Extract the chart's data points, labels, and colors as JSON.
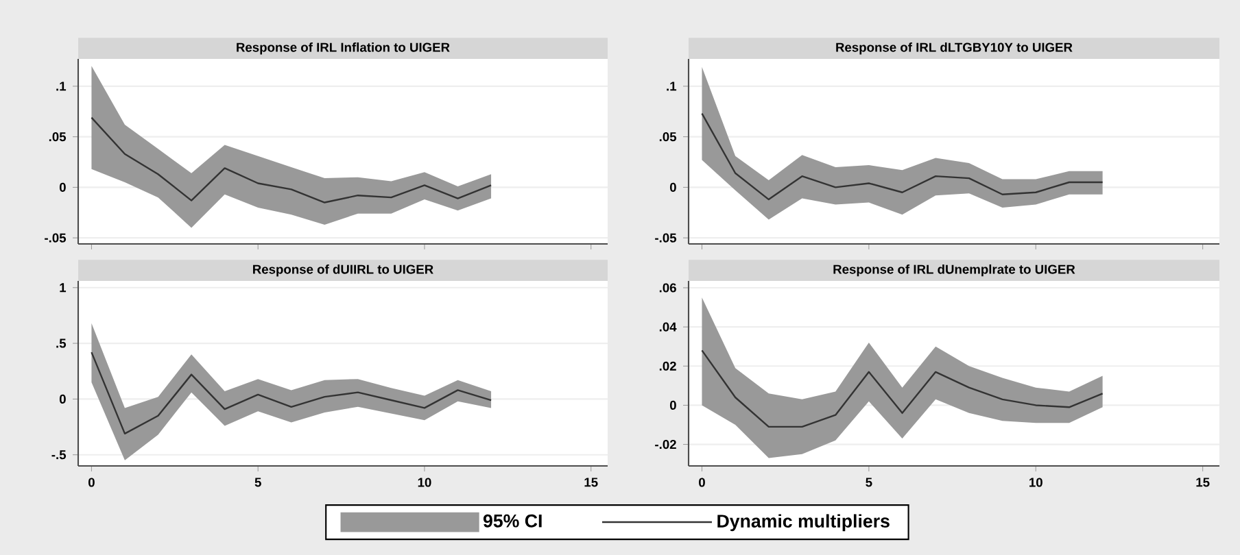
{
  "chart_data": [
    {
      "type": "line",
      "title": "Response of IRL Inflation to UIGER",
      "x": [
        0,
        1,
        2,
        3,
        4,
        5,
        6,
        7,
        8,
        9,
        10,
        11,
        12
      ],
      "xlim": [
        -0.4,
        15.5
      ],
      "xticks": [
        0,
        5,
        10,
        15
      ],
      "ylim": [
        -0.056,
        0.127
      ],
      "yticks": [
        {
          "value": -0.05,
          "label": "-.05"
        },
        0,
        {
          "value": 0.05,
          "label": ".05"
        },
        {
          "value": 0.1,
          "label": ".1"
        }
      ],
      "grid": "y",
      "tick_labels": "y",
      "legend": "bottom",
      "annotations": [
        "95% CI"
      ],
      "series": [
        {
          "name": "Dynamic multipliers",
          "color": "#333333",
          "values": [
            0.069,
            0.033,
            0.013,
            -0.013,
            0.019,
            0.004,
            -0.002,
            -0.015,
            -0.008,
            -0.01,
            0.002,
            -0.011,
            0.002
          ],
          "lower": [
            0.018,
            0.005,
            -0.01,
            -0.04,
            -0.007,
            -0.02,
            -0.027,
            -0.037,
            -0.026,
            -0.026,
            -0.012,
            -0.023,
            -0.011
          ],
          "upper": [
            0.12,
            0.062,
            0.038,
            0.014,
            0.042,
            0.031,
            0.02,
            0.009,
            0.01,
            0.006,
            0.015,
            0.001,
            0.013
          ]
        }
      ]
    },
    {
      "type": "line",
      "title": "Response of IRL dLTGBY10Y to UIGER",
      "x": [
        0,
        1,
        2,
        3,
        4,
        5,
        6,
        7,
        8,
        9,
        10,
        11,
        12
      ],
      "xlim": [
        -0.4,
        15.5
      ],
      "xticks": [
        0,
        5,
        10,
        15
      ],
      "ylim": [
        -0.056,
        0.127
      ],
      "yticks": [
        {
          "value": -0.05,
          "label": "-.05"
        },
        0,
        {
          "value": 0.05,
          "label": ".05"
        },
        {
          "value": 0.1,
          "label": ".1"
        }
      ],
      "grid": "y",
      "tick_labels": "y",
      "series": [
        {
          "color": "#333333",
          "values": [
            0.073,
            0.014,
            -0.012,
            0.011,
            0,
            0.004,
            -0.005,
            0.011,
            0.009,
            -0.007,
            -0.005,
            0.005,
            0.005
          ],
          "lower": [
            0.027,
            -0.003,
            -0.032,
            -0.011,
            -0.017,
            -0.015,
            -0.027,
            -0.008,
            -0.006,
            -0.02,
            -0.017,
            -0.007,
            -0.007
          ],
          "upper": [
            0.119,
            0.031,
            0.007,
            0.032,
            0.02,
            0.022,
            0.017,
            0.029,
            0.024,
            0.008,
            0.008,
            0.016,
            0.016
          ]
        }
      ]
    },
    {
      "type": "line",
      "title": "Response of dUIIRL to UIGER",
      "x": [
        0,
        1,
        2,
        3,
        4,
        5,
        6,
        7,
        8,
        9,
        10,
        11,
        12
      ],
      "xlim": [
        -0.4,
        15.5
      ],
      "xticks": [
        0,
        5,
        10,
        15
      ],
      "ylim": [
        -0.6,
        1.06
      ],
      "yticks": [
        {
          "value": -0.5,
          "label": "-.5"
        },
        0,
        {
          "value": 0.5,
          "label": ".5"
        },
        1
      ],
      "grid": "y",
      "series": [
        {
          "color": "#333333",
          "values": [
            0.42,
            -0.31,
            -0.15,
            0.22,
            -0.09,
            0.04,
            -0.07,
            0.02,
            0.06,
            -0.01,
            -0.08,
            0.08,
            -0.01
          ],
          "lower": [
            0.15,
            -0.55,
            -0.32,
            0.06,
            -0.24,
            -0.11,
            -0.21,
            -0.12,
            -0.07,
            -0.13,
            -0.19,
            -0.02,
            -0.08
          ],
          "upper": [
            0.68,
            -0.08,
            0.02,
            0.4,
            0.07,
            0.18,
            0.08,
            0.17,
            0.18,
            0.1,
            0.03,
            0.17,
            0.07
          ]
        }
      ]
    },
    {
      "type": "line",
      "title": "Response of IRL dUnemplrate to UIGER",
      "x": [
        0,
        1,
        2,
        3,
        4,
        5,
        6,
        7,
        8,
        9,
        10,
        11,
        12
      ],
      "xlim": [
        -0.4,
        15.5
      ],
      "xticks": [
        0,
        5,
        10,
        15
      ],
      "ylim": [
        -0.031,
        0.0635
      ],
      "yticks": [
        {
          "value": -0.02,
          "label": "-.02"
        },
        0,
        {
          "value": 0.02,
          "label": ".02"
        },
        {
          "value": 0.04,
          "label": ".04"
        },
        {
          "value": 0.06,
          "label": ".06"
        }
      ],
      "grid": "y",
      "series": [
        {
          "color": "#333333",
          "values": [
            0.028,
            0.004,
            -0.011,
            -0.011,
            -0.005,
            0.017,
            -0.004,
            0.017,
            0.009,
            0.003,
            0,
            -0.001,
            0.006
          ],
          "lower": [
            0.0,
            -0.01,
            -0.027,
            -0.025,
            -0.018,
            0.002,
            -0.017,
            0.003,
            -0.004,
            -0.008,
            -0.009,
            -0.009,
            -0.001
          ],
          "upper": [
            0.055,
            0.019,
            0.006,
            0.003,
            0.007,
            0.032,
            0.009,
            0.03,
            0.02,
            0.014,
            0.009,
            0.007,
            0.015
          ]
        }
      ]
    }
  ]
}
